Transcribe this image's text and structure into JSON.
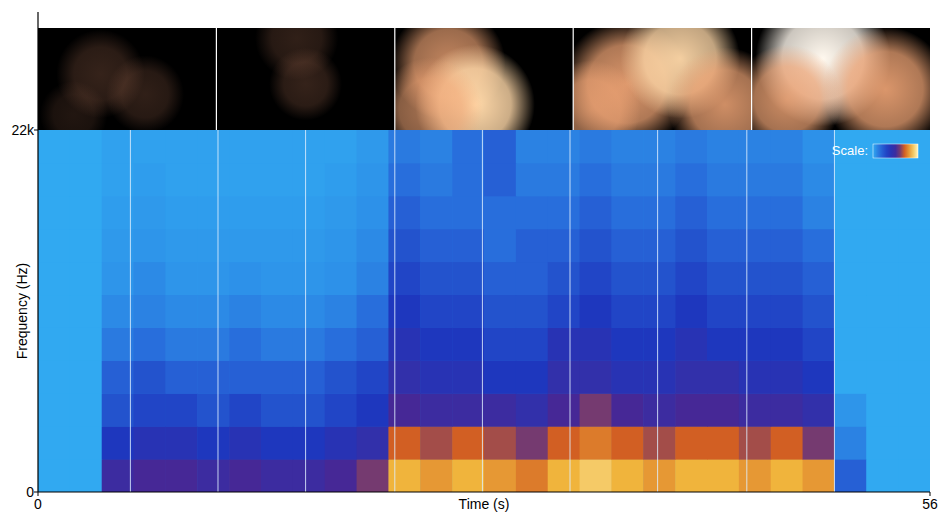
{
  "chart_data": {
    "type": "heatmap",
    "x_label": "Time (s)",
    "y_label": "Frequency (Hz)",
    "xlim": [
      0,
      56
    ],
    "ylim": [
      0,
      22000
    ],
    "xticks": [
      0,
      56
    ],
    "yticks": [
      0,
      {
        "value": 22000,
        "label": "22k"
      }
    ],
    "tick_labels": true,
    "grid": false,
    "x_bins": [
      0,
      2,
      4,
      6,
      8,
      10,
      12,
      14,
      16,
      18,
      20,
      22,
      24,
      26,
      28,
      30,
      32,
      34,
      36,
      38,
      40,
      42,
      44,
      46,
      48,
      50,
      52,
      54,
      56
    ],
    "y_bins": [
      0,
      2000,
      4000,
      6000,
      8000,
      10000,
      12000,
      14000,
      16000,
      18000,
      20000,
      22000
    ],
    "cells": [
      [
        0,
        0,
        0.5,
        0.55,
        0.55,
        0.5,
        0.55,
        0.5,
        0.5,
        0.55,
        0.6,
        0.85,
        0.8,
        0.85,
        0.8,
        0.75,
        0.85,
        0.9,
        0.85,
        0.8,
        0.85,
        0.85,
        0.8,
        0.85,
        0.8,
        0.2,
        0,
        0
      ],
      [
        0,
        0,
        0.35,
        0.4,
        0.4,
        0.35,
        0.4,
        0.35,
        0.35,
        0.4,
        0.45,
        0.7,
        0.65,
        0.7,
        0.65,
        0.6,
        0.7,
        0.75,
        0.7,
        0.65,
        0.7,
        0.7,
        0.65,
        0.7,
        0.6,
        0.1,
        0,
        0
      ],
      [
        0,
        0,
        0.25,
        0.3,
        0.3,
        0.25,
        0.3,
        0.25,
        0.25,
        0.3,
        0.35,
        0.55,
        0.5,
        0.5,
        0.5,
        0.45,
        0.55,
        0.6,
        0.55,
        0.5,
        0.55,
        0.55,
        0.5,
        0.5,
        0.45,
        0.05,
        0,
        0
      ],
      [
        0,
        0,
        0.2,
        0.25,
        0.2,
        0.2,
        0.2,
        0.2,
        0.2,
        0.25,
        0.3,
        0.45,
        0.4,
        0.4,
        0.35,
        0.35,
        0.45,
        0.45,
        0.4,
        0.4,
        0.45,
        0.45,
        0.4,
        0.4,
        0.35,
        0,
        0,
        0
      ],
      [
        0,
        0,
        0.12,
        0.15,
        0.12,
        0.12,
        0.15,
        0.12,
        0.12,
        0.15,
        0.2,
        0.4,
        0.35,
        0.35,
        0.3,
        0.3,
        0.4,
        0.4,
        0.35,
        0.35,
        0.4,
        0.35,
        0.35,
        0.35,
        0.3,
        0,
        0,
        0
      ],
      [
        0,
        0,
        0.08,
        0.1,
        0.08,
        0.08,
        0.1,
        0.08,
        0.08,
        0.1,
        0.15,
        0.35,
        0.3,
        0.3,
        0.25,
        0.25,
        0.3,
        0.35,
        0.3,
        0.3,
        0.35,
        0.3,
        0.3,
        0.3,
        0.25,
        0,
        0,
        0
      ],
      [
        0,
        0,
        0.05,
        0.08,
        0.05,
        0.05,
        0.06,
        0.05,
        0.05,
        0.06,
        0.1,
        0.3,
        0.25,
        0.25,
        0.2,
        0.2,
        0.25,
        0.3,
        0.25,
        0.25,
        0.3,
        0.25,
        0.25,
        0.25,
        0.2,
        0,
        0,
        0
      ],
      [
        0,
        0,
        0.04,
        0.05,
        0.04,
        0.04,
        0.04,
        0.04,
        0.04,
        0.05,
        0.08,
        0.25,
        0.2,
        0.2,
        0.15,
        0.2,
        0.2,
        0.25,
        0.2,
        0.2,
        0.25,
        0.2,
        0.2,
        0.2,
        0.15,
        0,
        0,
        0
      ],
      [
        0,
        0,
        0.03,
        0.04,
        0.03,
        0.03,
        0.03,
        0.03,
        0.03,
        0.04,
        0.06,
        0.2,
        0.15,
        0.15,
        0.15,
        0.15,
        0.15,
        0.2,
        0.15,
        0.15,
        0.2,
        0.15,
        0.15,
        0.15,
        0.1,
        0,
        0,
        0
      ],
      [
        0,
        0,
        0.02,
        0.03,
        0.02,
        0.02,
        0.02,
        0.02,
        0.02,
        0.03,
        0.05,
        0.15,
        0.12,
        0.15,
        0.2,
        0.12,
        0.12,
        0.15,
        0.12,
        0.12,
        0.15,
        0.12,
        0.12,
        0.12,
        0.08,
        0,
        0,
        0
      ],
      [
        0,
        0,
        0.02,
        0.02,
        0.02,
        0.02,
        0.02,
        0.02,
        0.02,
        0.02,
        0.04,
        0.12,
        0.1,
        0.15,
        0.2,
        0.1,
        0.1,
        0.12,
        0.1,
        0.1,
        0.12,
        0.1,
        0.1,
        0.1,
        0.06,
        0,
        0,
        0
      ]
    ],
    "markers": [
      5.8,
      11.3,
      16.8,
      22.4,
      27.9,
      33.4,
      38.9,
      44.5,
      50.0
    ],
    "colorbar": {
      "label": "Scale:",
      "range": [
        0,
        1
      ]
    }
  }
}
